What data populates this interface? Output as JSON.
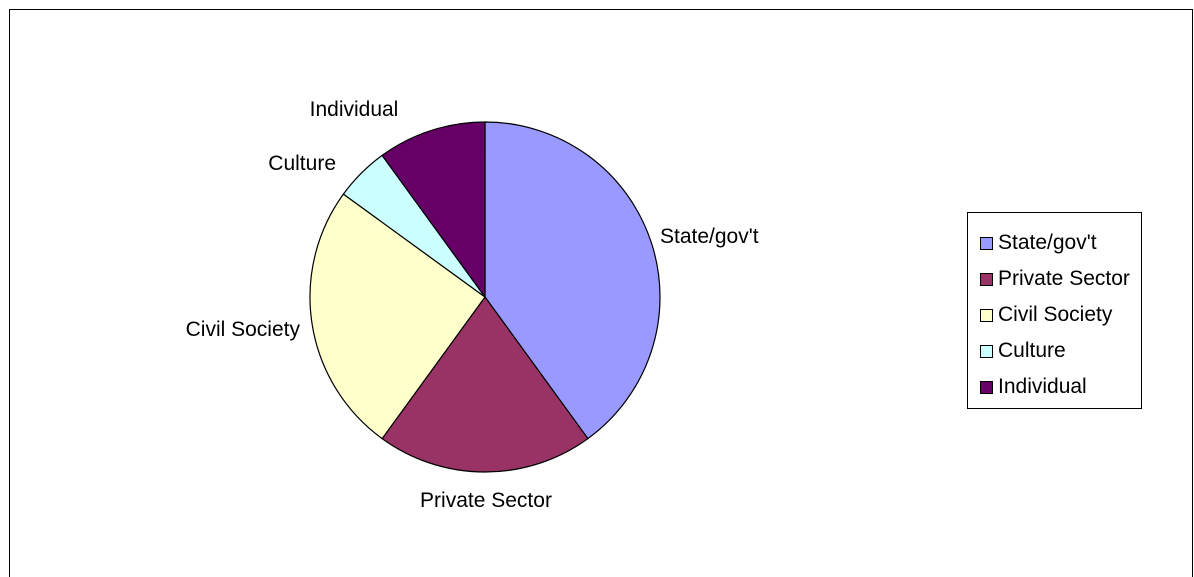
{
  "chart_data": {
    "type": "pie",
    "title": "",
    "categories": [
      "State/gov't",
      "Private Sector",
      "Civil Society",
      "Culture",
      "Individual"
    ],
    "values": [
      40,
      20,
      25,
      5,
      10
    ],
    "colors": [
      "#9999FF",
      "#993366",
      "#FFFFCC",
      "#CCFFFF",
      "#660066"
    ],
    "legend_position": "right",
    "slice_labels": [
      "State/gov't",
      "Private Sector",
      "Civil Society",
      "Culture",
      "Individual"
    ]
  },
  "legend": {
    "items": [
      {
        "label": "State/gov't",
        "color": "#9999FF"
      },
      {
        "label": "Private Sector",
        "color": "#993366"
      },
      {
        "label": "Civil Society",
        "color": "#FFFFCC"
      },
      {
        "label": "Culture",
        "color": "#CCFFFF"
      },
      {
        "label": "Individual",
        "color": "#660066"
      }
    ]
  }
}
